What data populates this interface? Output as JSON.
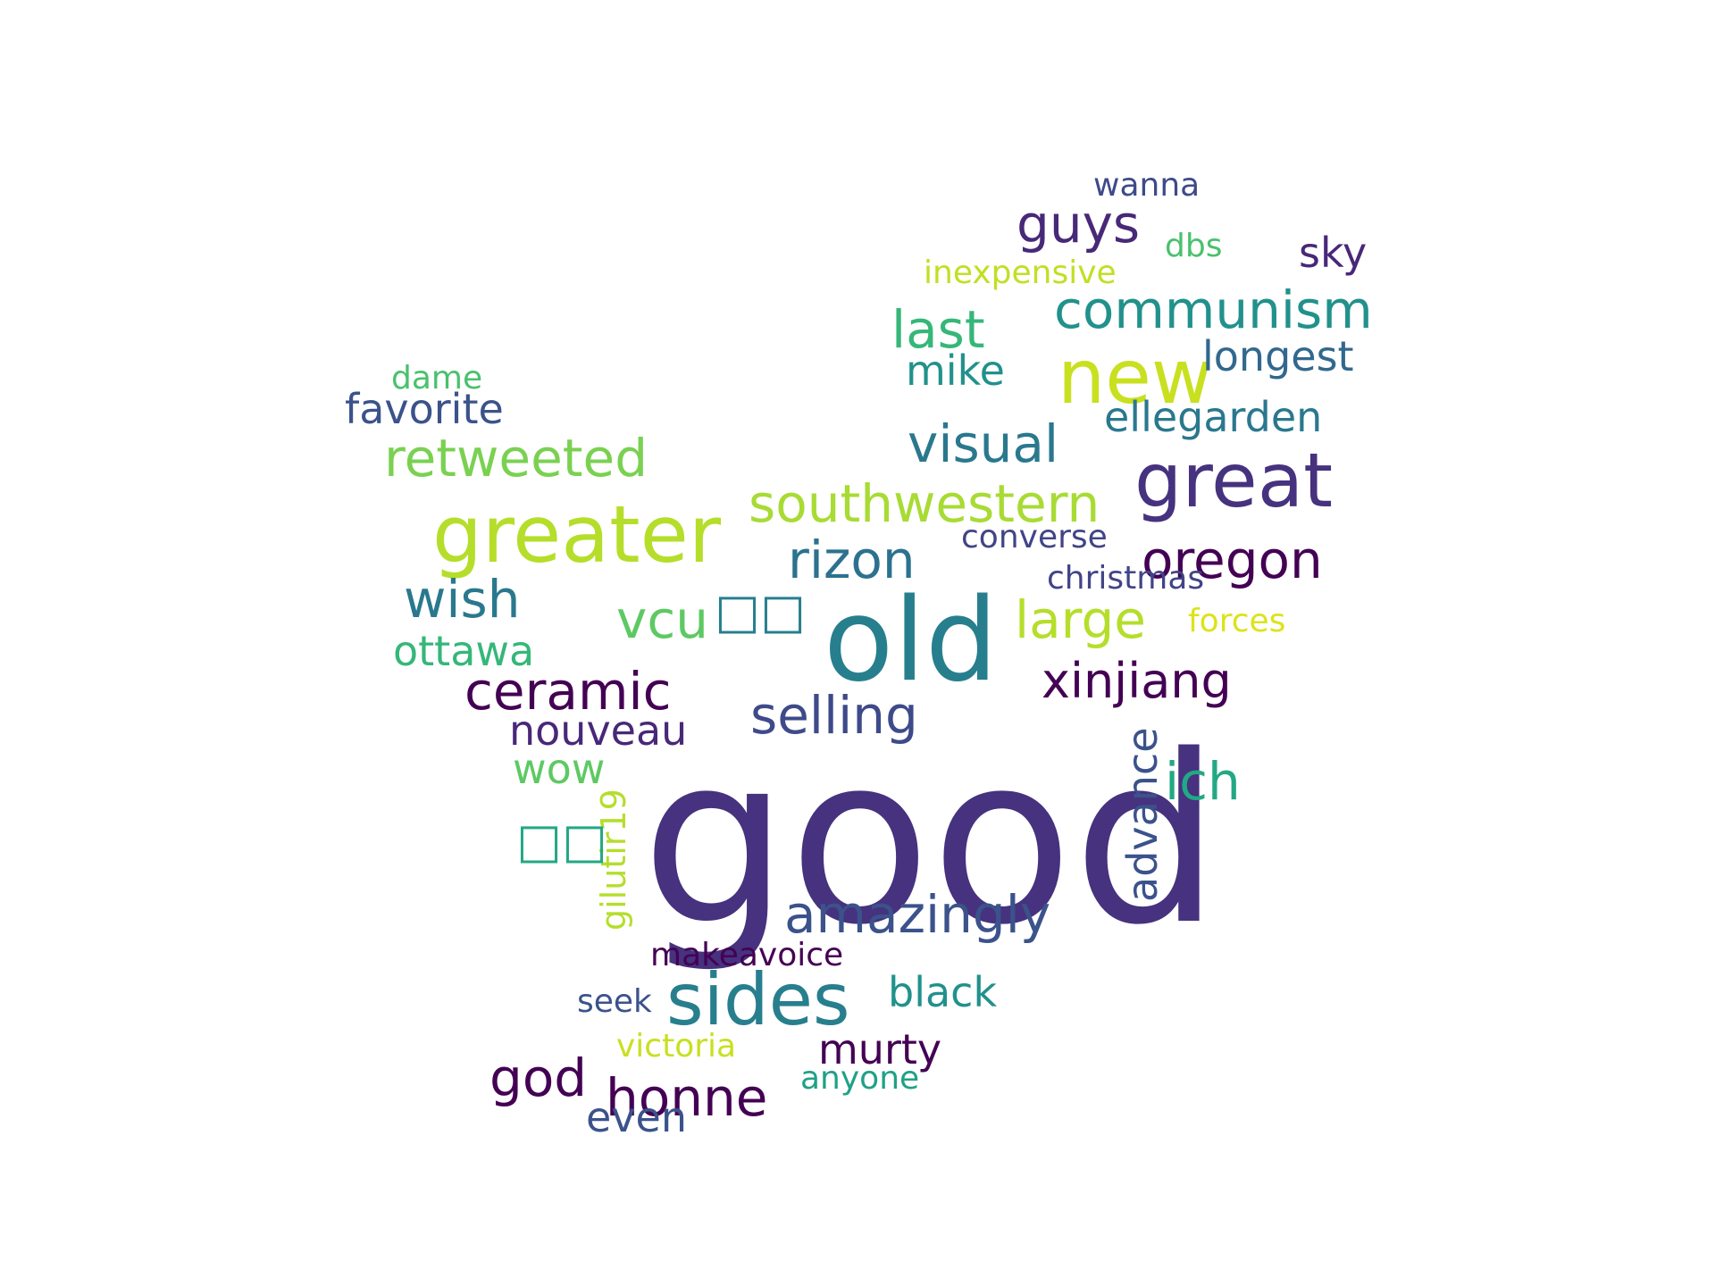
{
  "words": [
    {
      "text": "good",
      "color": "#46327e"
    },
    {
      "text": "old",
      "color": "#277f8e"
    },
    {
      "text": "great",
      "color": "#46327e"
    },
    {
      "text": "greater",
      "color": "#b5de2b"
    },
    {
      "text": "new",
      "color": "#c8e020"
    },
    {
      "text": "sides",
      "color": "#277f8e"
    },
    {
      "text": "southwestern",
      "color": "#a8db34"
    },
    {
      "text": "amazingly",
      "color": "#3b528b"
    },
    {
      "text": "oregon",
      "color": "#440154"
    },
    {
      "text": "retweeted",
      "color": "#7ad151"
    },
    {
      "text": "communism",
      "color": "#21918c"
    },
    {
      "text": "guys",
      "color": "#482878"
    },
    {
      "text": "visual",
      "color": "#2a788e"
    },
    {
      "text": "selling",
      "color": "#3e4a89"
    },
    {
      "text": "ceramic",
      "color": "#440154"
    },
    {
      "text": "xinjiang",
      "color": "#440154"
    },
    {
      "text": "large",
      "color": "#b5de2b"
    },
    {
      "text": "rizon",
      "color": "#2c728e"
    },
    {
      "text": "wish",
      "color": "#2a788e"
    },
    {
      "text": "ich",
      "color": "#22a884"
    },
    {
      "text": "honne",
      "color": "#440154"
    },
    {
      "text": "god",
      "color": "#440154"
    },
    {
      "text": "last",
      "color": "#35b779"
    },
    {
      "text": "vcu",
      "color": "#5ec962"
    },
    {
      "text": "longest",
      "color": "#31688e"
    },
    {
      "text": "ellegarden",
      "color": "#2a788e"
    },
    {
      "text": "favorite",
      "color": "#3b528b"
    },
    {
      "text": "black",
      "color": "#21918c"
    },
    {
      "text": "nouveau",
      "color": "#482878"
    },
    {
      "text": "murty",
      "color": "#440154"
    },
    {
      "text": "advance",
      "color": "#3b528b"
    },
    {
      "text": "ottawa",
      "color": "#35b779"
    },
    {
      "text": "mike",
      "color": "#21918c"
    },
    {
      "text": "sky",
      "color": "#482878"
    },
    {
      "text": "even",
      "color": "#3b528b"
    },
    {
      "text": "wow",
      "color": "#5ec962"
    },
    {
      "text": "gilutir19",
      "color": "#b5de2b"
    },
    {
      "text": "wanna",
      "color": "#3e4a89"
    },
    {
      "text": "dbs",
      "color": "#4ac16d"
    },
    {
      "text": "inexpensive",
      "color": "#c2df23"
    },
    {
      "text": "dame",
      "color": "#4ac16d"
    },
    {
      "text": "converse",
      "color": "#414487"
    },
    {
      "text": "christmas",
      "color": "#414487"
    },
    {
      "text": "forces",
      "color": "#dde318"
    },
    {
      "text": "makeavoice",
      "color": "#440154"
    },
    {
      "text": "seek",
      "color": "#3b528b"
    },
    {
      "text": "victoria",
      "color": "#c8e020"
    },
    {
      "text": "anyone",
      "color": "#1fa187"
    },
    {
      "text": "□□",
      "color": "#277f8e"
    },
    {
      "text": "□□",
      "color": "#22a884"
    }
  ]
}
